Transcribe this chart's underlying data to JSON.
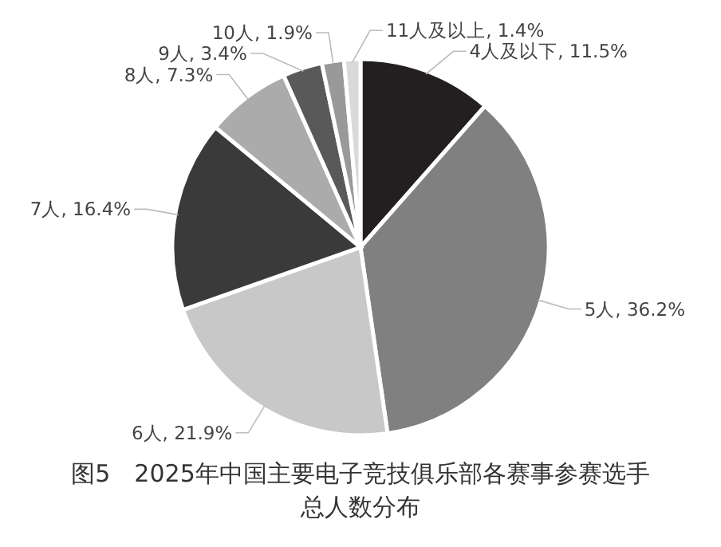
{
  "chart_data": {
    "type": "pie",
    "title": "图5　2025年中国主要电子竞技俱乐部各赛事参赛选手总人数分布",
    "categories": [
      "4人及以下",
      "5人",
      "6人",
      "7人",
      "8人",
      "9人",
      "10人",
      "11人及以上"
    ],
    "values": [
      11.5,
      36.2,
      21.9,
      16.4,
      7.3,
      3.4,
      1.9,
      1.4
    ],
    "colors": [
      "#231f20",
      "#808080",
      "#c8c8c8",
      "#3a3a3a",
      "#ababab",
      "#595959",
      "#999999",
      "#d9d9d9"
    ],
    "value_labels": [
      "11.5%",
      "36.2%",
      "21.9%",
      "16.4%",
      "7.3%",
      "3.4%",
      "1.9%",
      "1.4%"
    ],
    "legend": false
  }
}
